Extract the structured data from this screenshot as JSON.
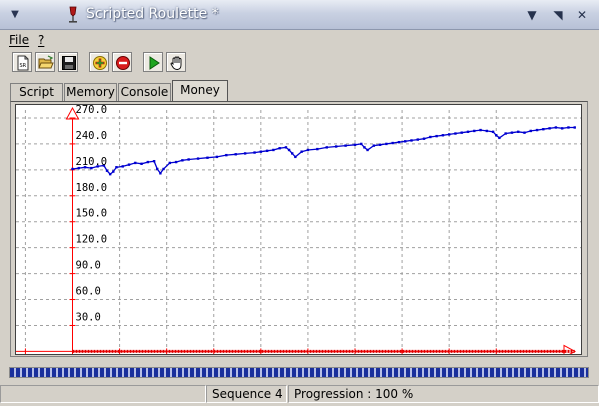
{
  "window": {
    "title": "Scripted Roulette *",
    "menu_glyph": "▼",
    "btn_min": "▼",
    "btn_max": "◥",
    "btn_close": "✕"
  },
  "menubar": {
    "items": [
      "File",
      "?"
    ]
  },
  "toolbar": {
    "buttons": [
      "new-script",
      "open-file",
      "save-file",
      "add",
      "stop",
      "run",
      "pan"
    ]
  },
  "tabs": [
    {
      "label": "Script",
      "active": false
    },
    {
      "label": "Memory",
      "active": false
    },
    {
      "label": "Console",
      "active": false
    },
    {
      "label": "Money",
      "active": true
    }
  ],
  "status": {
    "cell1": "",
    "sequence": "Sequence 4",
    "progression": "Progression : 100 %"
  },
  "progress": {
    "fraction": 1.0
  },
  "colors": {
    "axis": "#ff0000",
    "series": "#0000d0",
    "grid": "#a0a0a0",
    "baseline": "#e00000"
  },
  "chart_data": {
    "type": "line",
    "xlim": [
      -18,
      162
    ],
    "ylim": [
      -3,
      285
    ],
    "grid": true,
    "x_ticks": [
      "-15.0",
      "0.0",
      "15.0",
      "30.0",
      "45.0",
      "60.0",
      "75.0",
      "90.0",
      "105.0",
      "120.0",
      "135.0"
    ],
    "x_tick_values": [
      -15,
      0,
      15,
      30,
      45,
      60,
      75,
      90,
      105,
      120,
      135
    ],
    "y_ticks": [
      "30.0",
      "60.0",
      "90.0",
      "120.0",
      "150.0",
      "180.0",
      "210.0",
      "240.0",
      "270.0"
    ],
    "y_tick_values": [
      30,
      60,
      90,
      120,
      150,
      180,
      210,
      240,
      270
    ],
    "series": [
      {
        "x": [
          0,
          2,
          4,
          6,
          8,
          10,
          11,
          12,
          13,
          14,
          16,
          18,
          20,
          22,
          24,
          26,
          27,
          28,
          29,
          31,
          33,
          35,
          37,
          40,
          43,
          46,
          49,
          52,
          55,
          58,
          60,
          62,
          64,
          66,
          68,
          69,
          70,
          71,
          73,
          75,
          78,
          81,
          84,
          87,
          90,
          92,
          93,
          94,
          96,
          98,
          100,
          102,
          104,
          106,
          108,
          110,
          112,
          114,
          116,
          118,
          120,
          122,
          124,
          126,
          128,
          130,
          132,
          134,
          135,
          136,
          138,
          140,
          142,
          144,
          146,
          148,
          150,
          152,
          154,
          156,
          158,
          160
        ],
        "y": [
          211,
          212,
          213,
          212,
          214,
          215,
          209,
          205,
          208,
          213,
          214,
          216,
          218,
          217,
          219,
          220,
          211,
          206,
          211,
          218,
          219,
          221,
          222,
          223,
          224,
          225,
          227,
          228,
          229,
          230,
          231,
          232,
          233,
          235,
          236,
          233,
          229,
          225,
          231,
          233,
          234,
          236,
          237,
          238,
          239,
          240,
          236,
          233,
          238,
          239,
          240,
          241,
          242,
          243,
          244,
          245,
          246,
          248,
          249,
          250,
          251,
          252,
          253,
          254,
          255,
          256,
          255,
          254,
          250,
          247,
          252,
          253,
          254,
          253,
          255,
          256,
          257,
          258,
          259,
          258,
          259,
          259
        ]
      }
    ]
  }
}
